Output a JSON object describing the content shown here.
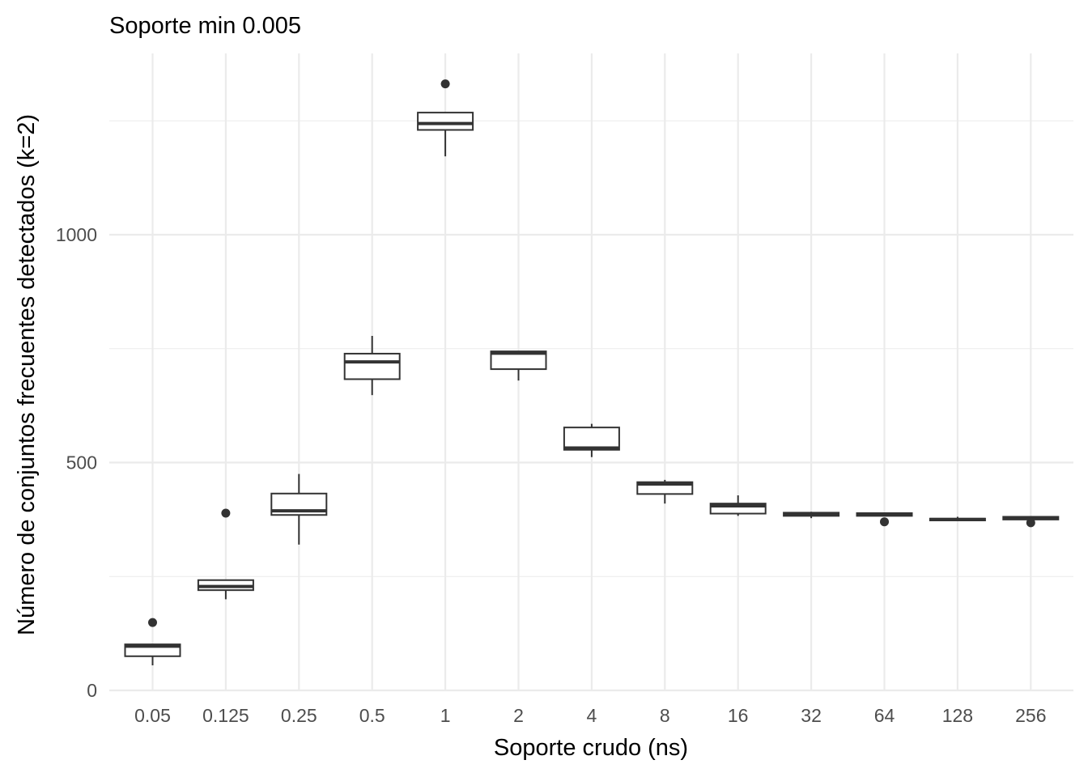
{
  "chart_data": {
    "type": "boxplot",
    "title": "Soporte min 0.005",
    "xlabel": "Soporte crudo (ns)",
    "ylabel": "Número de conjuntos frecuentes detectados (k=2)",
    "ylim": [
      0,
      1400
    ],
    "y_ticks": [
      0,
      500,
      1000
    ],
    "grid": true,
    "categories": [
      "0.05",
      "0.125",
      "0.25",
      "0.5",
      "1",
      "2",
      "4",
      "8",
      "16",
      "32",
      "64",
      "128",
      "256"
    ],
    "boxes": [
      {
        "category": "0.05",
        "min": 55,
        "q1": 75,
        "median": 97,
        "q3": 101,
        "max": 101,
        "outliers": [
          149
        ]
      },
      {
        "category": "0.125",
        "min": 200,
        "q1": 220,
        "median": 228,
        "q3": 242,
        "max": 242,
        "outliers": [
          389
        ]
      },
      {
        "category": "0.25",
        "min": 320,
        "q1": 385,
        "median": 394,
        "q3": 432,
        "max": 475,
        "outliers": []
      },
      {
        "category": "0.5",
        "min": 648,
        "q1": 683,
        "median": 721,
        "q3": 739,
        "max": 778,
        "outliers": []
      },
      {
        "category": "1",
        "min": 1172,
        "q1": 1230,
        "median": 1244,
        "q3": 1268,
        "max": 1268,
        "outliers": [
          1331
        ]
      },
      {
        "category": "2",
        "min": 680,
        "q1": 705,
        "median": 740,
        "q3": 744,
        "max": 744,
        "outliers": []
      },
      {
        "category": "4",
        "min": 512,
        "q1": 528,
        "median": 532,
        "q3": 577,
        "max": 585,
        "outliers": []
      },
      {
        "category": "8",
        "min": 410,
        "q1": 431,
        "median": 453,
        "q3": 457,
        "max": 462,
        "outliers": []
      },
      {
        "category": "16",
        "min": 383,
        "q1": 388,
        "median": 405,
        "q3": 410,
        "max": 428,
        "outliers": []
      },
      {
        "category": "32",
        "min": 378,
        "q1": 383,
        "median": 387,
        "q3": 390,
        "max": 392,
        "outliers": []
      },
      {
        "category": "64",
        "min": 383,
        "q1": 383,
        "median": 387,
        "q3": 389,
        "max": 389,
        "outliers": [
          370
        ]
      },
      {
        "category": "128",
        "min": 372,
        "q1": 373,
        "median": 375,
        "q3": 377,
        "max": 381,
        "outliers": []
      },
      {
        "category": "256",
        "min": 375,
        "q1": 375,
        "median": 379,
        "q3": 381,
        "max": 381,
        "outliers": [
          368
        ]
      }
    ]
  }
}
